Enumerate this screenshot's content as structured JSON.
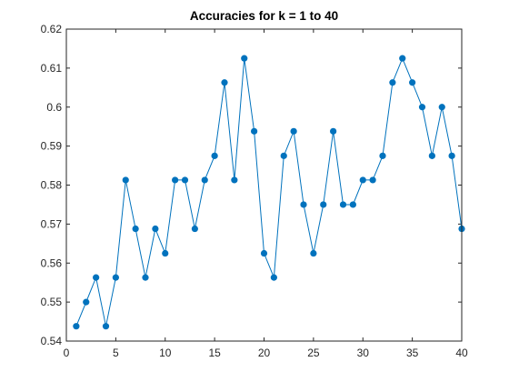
{
  "window": {
    "background": "#ffffff"
  },
  "chart_data": {
    "type": "line",
    "title": "Accuracies for k = 1 to 40",
    "xlabel": "",
    "ylabel": "",
    "xlim": [
      0,
      40
    ],
    "ylim": [
      0.54,
      0.62
    ],
    "x_ticks": [
      0,
      5,
      10,
      15,
      20,
      25,
      30,
      35,
      40
    ],
    "x_tick_labels": [
      "0",
      "5",
      "10",
      "15",
      "20",
      "25",
      "30",
      "35",
      "40"
    ],
    "y_ticks": [
      0.54,
      0.55,
      0.56,
      0.57,
      0.58,
      0.59,
      0.6,
      0.61,
      0.62
    ],
    "y_tick_labels": [
      "0.54",
      "0.55",
      "0.56",
      "0.57",
      "0.58",
      "0.59",
      "0.6",
      "0.61",
      "0.62"
    ],
    "grid": false,
    "box": true,
    "marker": "filled-circle",
    "line_color": "#0072bd",
    "axis_color": "#262626",
    "series": [
      {
        "x": [
          1,
          2,
          3,
          4,
          5,
          6,
          7,
          8,
          9,
          10,
          11,
          12,
          13,
          14,
          15,
          16,
          17,
          18,
          19,
          20,
          21,
          22,
          23,
          24,
          25,
          26,
          27,
          28,
          29,
          30,
          31,
          32,
          33,
          34,
          35,
          36,
          37,
          38,
          39,
          40
        ],
        "values": [
          0.5438,
          0.55,
          0.5563,
          0.5438,
          0.5563,
          0.5813,
          0.5688,
          0.5563,
          0.5688,
          0.5625,
          0.5813,
          0.5813,
          0.5688,
          0.5813,
          0.5875,
          0.6063,
          0.5813,
          0.6125,
          0.5938,
          0.5625,
          0.5563,
          0.5875,
          0.5938,
          0.575,
          0.5625,
          0.575,
          0.5938,
          0.575,
          0.575,
          0.5813,
          0.5813,
          0.5875,
          0.6063,
          0.6125,
          0.6063,
          0.6,
          0.5875,
          0.6,
          0.5875,
          0.5688
        ]
      }
    ]
  }
}
